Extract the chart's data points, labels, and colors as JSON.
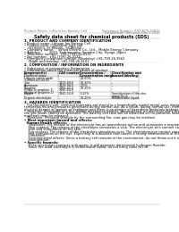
{
  "background_color": "#ffffff",
  "header_left": "Product Name: Lithium Ion Battery Cell",
  "header_right_line1": "Substance Number: SDS-SDS-20010",
  "header_right_line2": "Established / Revision: Dec.1 2010",
  "title": "Safety data sheet for chemical products (SDS)",
  "section1_title": "1. PRODUCT AND COMPANY IDENTIFICATION",
  "section1_lines": [
    "• Product name: Lithium Ion Battery Cell",
    "• Product code: Cylindrical type cell",
    "    (SY-86500, SY-86500L, SY-86504)",
    "• Company name:    Sanyo Electric Co., Ltd.,  Mobile Energy Company",
    "• Address:        2001, Kamimurako, Sumoto City, Hyogo, Japan",
    "• Telephone number:  +81-(799)-24-4111",
    "• Fax number:  +81-(799)-26-4123",
    "• Emergency telephone number (Weekday) +81-799-26-3562",
    "    (Night and holiday) +81-799-26-4101"
  ],
  "section2_title": "2. COMPOSITION / INFORMATION ON INGREDIENTS",
  "section2_subtitle": "• Substance or preparation: Preparation",
  "section2_subtitle2": "• Information about the chemical nature of product",
  "table_col0_header": "Component(s)",
  "table_col0_subheader": "Chemical name",
  "table_headers": [
    "CAS number",
    "Concentration /\nConcentration range",
    "Classification and\nhazard labeling"
  ],
  "table_rows": [
    [
      "Lithium cobalt oxide\n(LiMnxCo(1-x)O2)",
      "-",
      "20-60%",
      "-"
    ],
    [
      "Iron",
      "7439-89-6",
      "10-30%",
      "-"
    ],
    [
      "Aluminum",
      "7429-90-5",
      "2-5%",
      "-"
    ],
    [
      "Graphite\n(Flake or graphite-1)\n(Artificial graphite-1)",
      "7782-42-5\n7440-44-0",
      "10-25%",
      "-"
    ],
    [
      "Copper",
      "7440-50-8",
      "5-15%",
      "Sensitization of the skin\ngroup No.2"
    ],
    [
      "Organic electrolyte",
      "-",
      "10-20%",
      "Inflammable liquid"
    ]
  ],
  "section3_title": "3. HAZARDS IDENTIFICATION",
  "section3_para": [
    "   For the battery cell, chemical materials are stored in a hermetically sealed metal case, designed to withstand",
    "temperatures and pressures generated during normal use. As a result, during normal use, there is no",
    "physical danger of ignition or explosion and there is no danger of hazardous materials leakage.",
    "   However, if exposed to a fire, added mechanical shocks, decomposed, an electrical short-circuiting may cause",
    "the gas inside cannot be operated. The battery cell case will be breached at fire-patterns, hazardous",
    "materials may be released.",
    "   Moreover, if heated strongly by the surrounding fire, soot gas may be emitted."
  ],
  "section3_important": "• Most important hazard and effects:",
  "section3_human_title": "  Human health effects:",
  "section3_human_lines": [
    "    Inhalation: The release of the electrolyte has an anaesthesia action and stimulates a respiratory tract.",
    "    Skin contact: The release of the electrolyte stimulates a skin. The electrolyte skin contact causes a",
    "    sore and stimulation on the skin.",
    "    Eye contact: The release of the electrolyte stimulates eyes. The electrolyte eye contact causes a sore",
    "    and stimulation on the eye. Especially, a substance that causes a strong inflammation of the eye is",
    "    contained.",
    "    Environmental effects: Since a battery cell remains in the environment, do not throw out it into the",
    "    environment."
  ],
  "section3_specific": "• Specific hazards:",
  "section3_specific_lines": [
    "    If the electrolyte contacts with water, it will generate detrimental hydrogen fluoride.",
    "    Since the used electrolyte is inflammable liquid, do not bring close to fire."
  ],
  "footer_line": true
}
